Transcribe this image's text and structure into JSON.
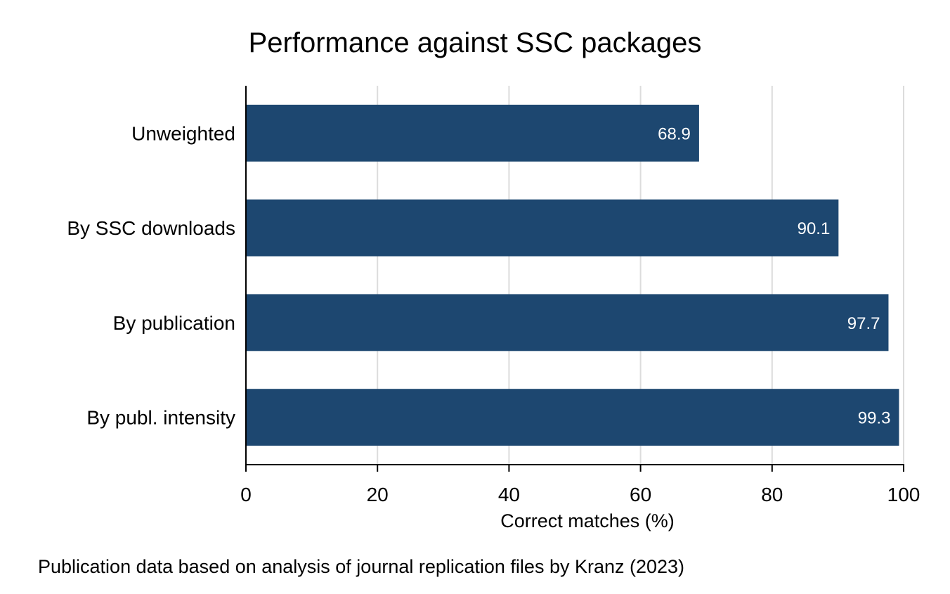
{
  "chart_data": {
    "type": "bar",
    "orientation": "horizontal",
    "title": "Performance against SSC packages",
    "categories": [
      "Unweighted",
      "By SSC downloads",
      "By publication",
      "By publ. intensity"
    ],
    "values": [
      68.9,
      90.1,
      97.7,
      99.3
    ],
    "value_labels": [
      "68.9",
      "90.1",
      "97.7",
      "99.3"
    ],
    "xlabel": "Correct matches (%)",
    "ylabel": "",
    "xlim": [
      0,
      100
    ],
    "xticks": [
      0,
      20,
      40,
      60,
      80,
      100
    ],
    "xtick_labels": [
      "0",
      "20",
      "40",
      "60",
      "80",
      "100"
    ],
    "grid": "vertical",
    "bar_color": "#1d4770",
    "note": "Publication data based on analysis of journal replication files by Kranz (2023)"
  }
}
